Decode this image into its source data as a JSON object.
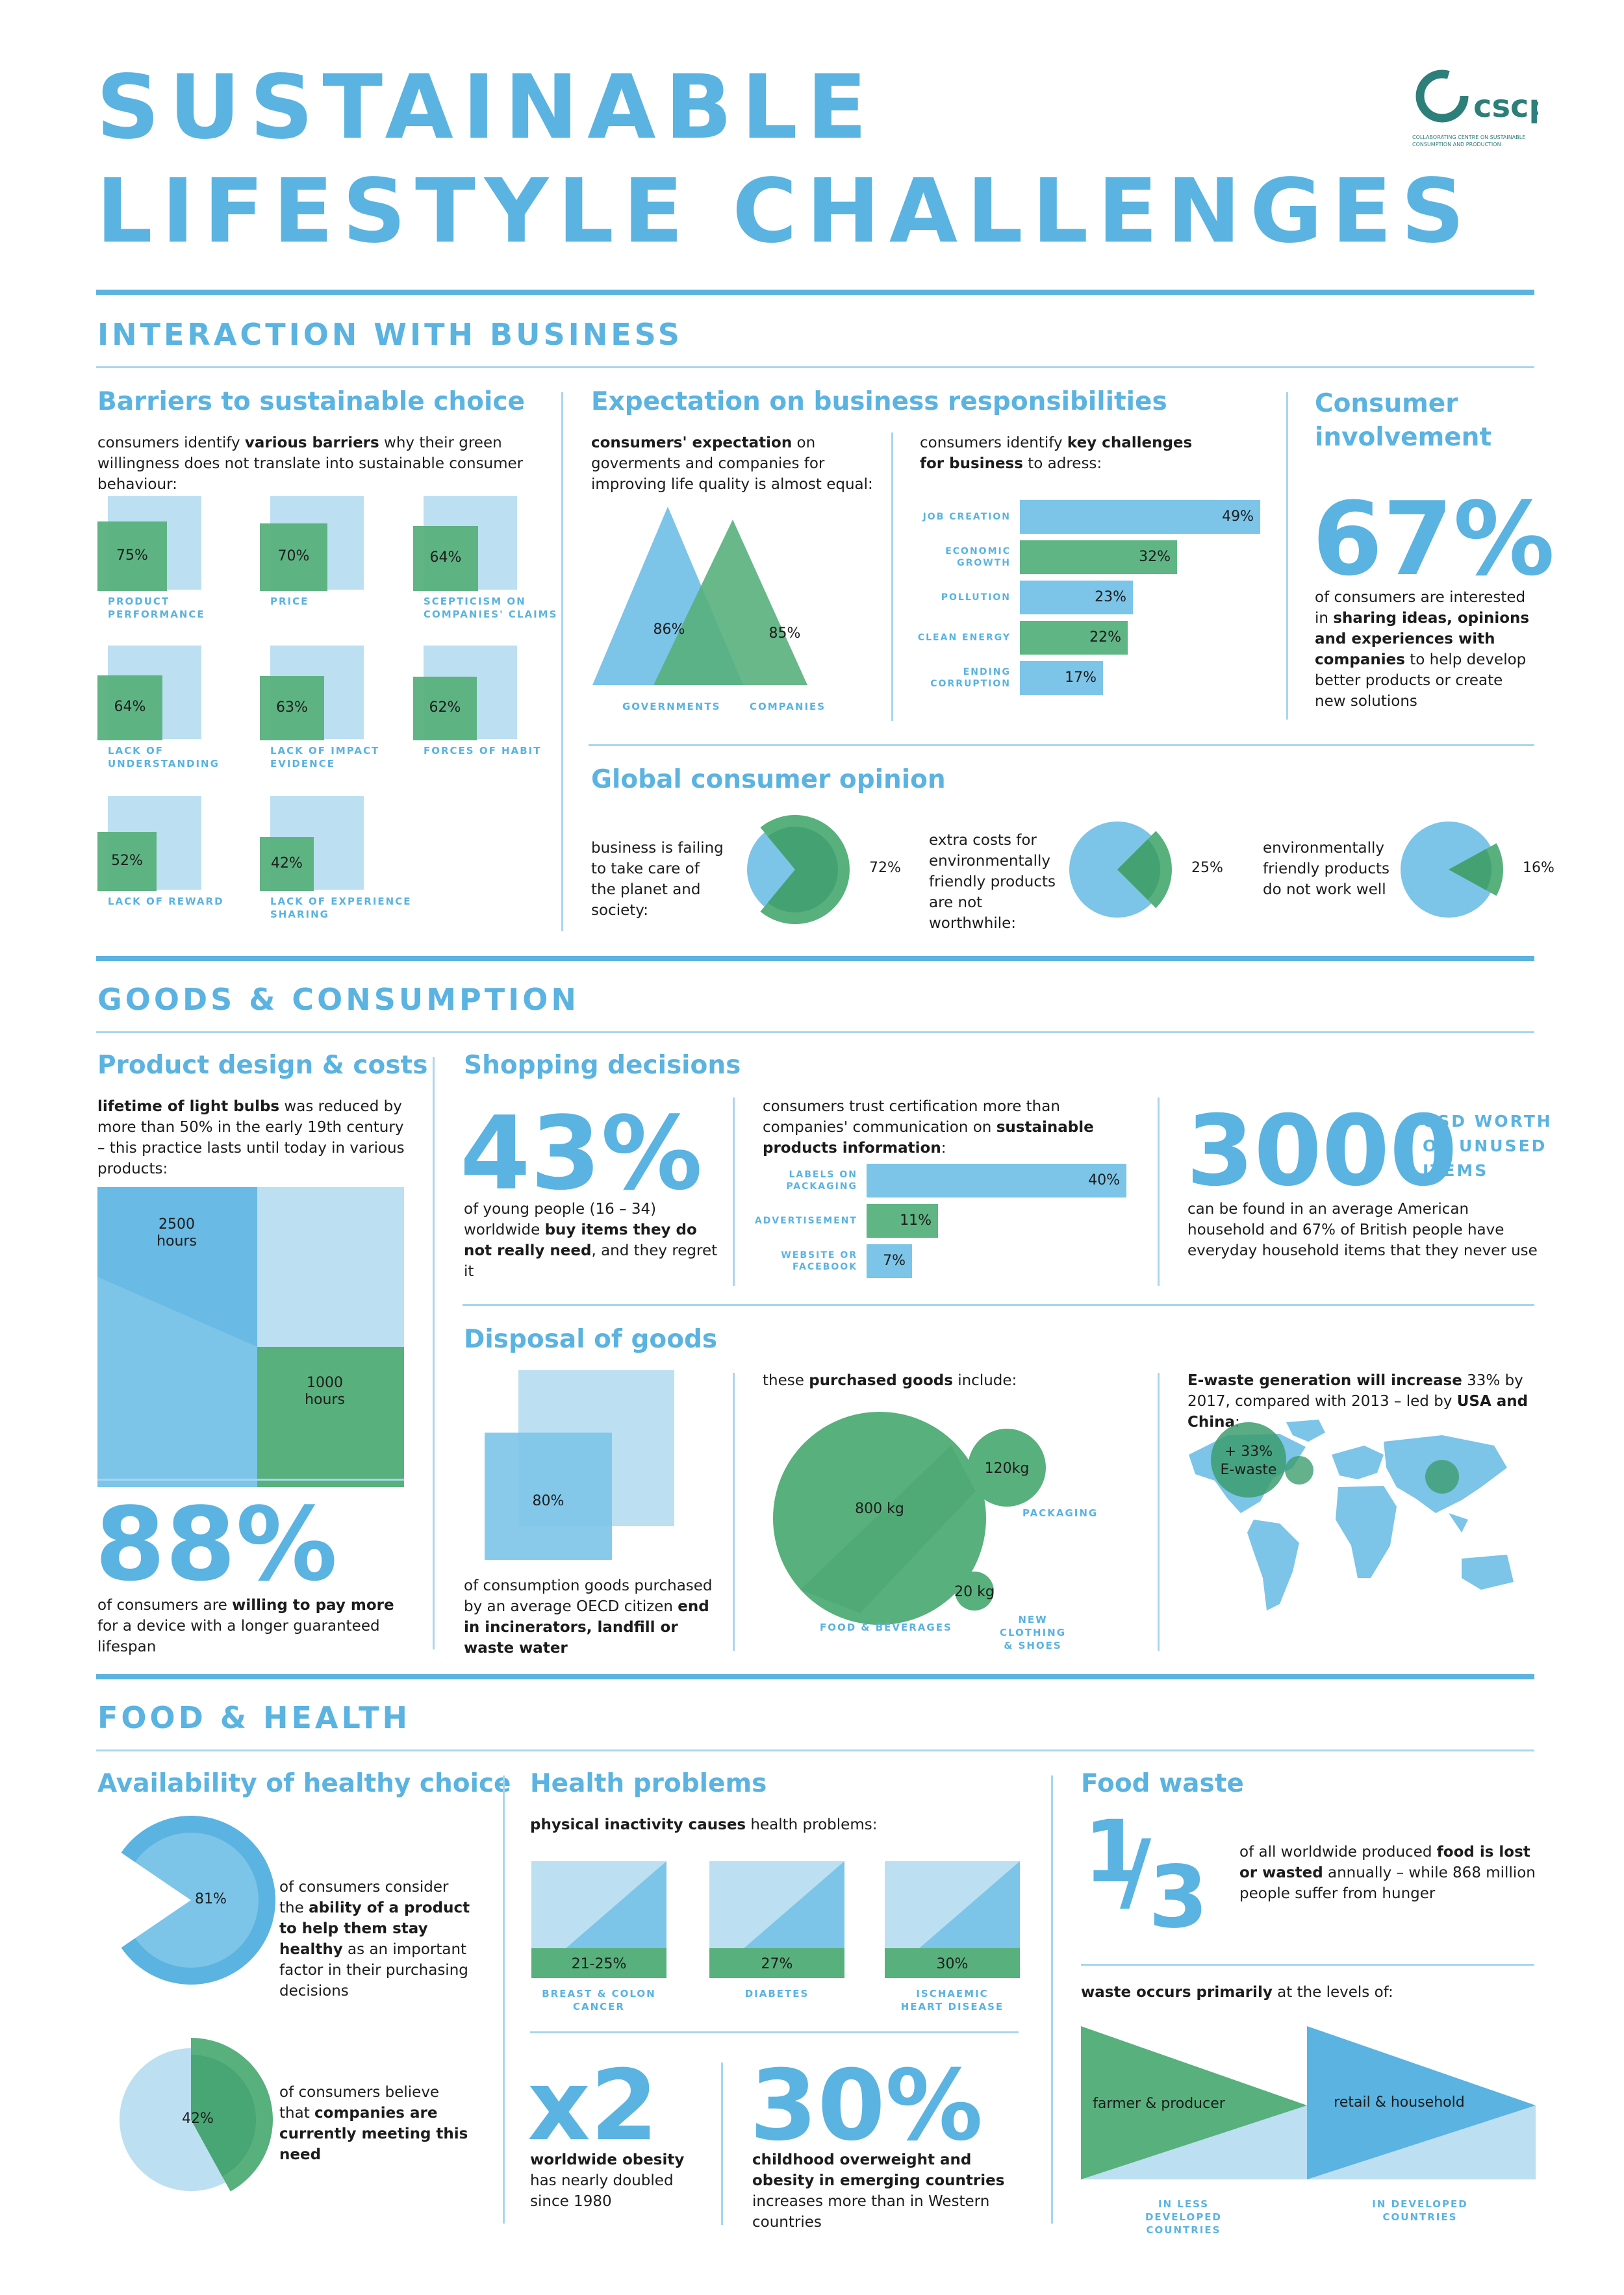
{
  "header": {
    "title_line1": "SUSTAINABLE",
    "title_line2": "LIFESTYLE CHALLENGES",
    "logo_text": "cscp",
    "logo_sub1": "COLLABORATING CENTRE ON SUSTAINABLE",
    "logo_sub2": "CONSUMPTION AND PRODUCTION"
  },
  "colors": {
    "blue": "#5ab3e0",
    "light_blue": "#bcdff2",
    "green": "#58b07c",
    "dark_green": "#3d9e6f"
  },
  "business": {
    "section_title": "INTERACTION WITH BUSINESS",
    "barriers": {
      "title": "Barriers to sustainable choice",
      "text_pre": "consumers identify ",
      "text_bold": "various barriers",
      "text_post": " why their green willingness does not translate into sustainable consumer behaviour:",
      "items": [
        {
          "value": "75%",
          "label_1": "PRODUCT",
          "label_2": "PERFORMANCE",
          "fraction": 0.75
        },
        {
          "value": "70%",
          "label_1": "PRICE",
          "label_2": "",
          "fraction": 0.7
        },
        {
          "value": "64%",
          "label_1": "SCEPTICISM ON",
          "label_2": "COMPANIES' CLAIMS",
          "fraction": 0.64
        },
        {
          "value": "64%",
          "label_1": "LACK OF",
          "label_2": "UNDERSTANDING",
          "fraction": 0.64
        },
        {
          "value": "63%",
          "label_1": "LACK OF IMPACT",
          "label_2": "EVIDENCE",
          "fraction": 0.63
        },
        {
          "value": "62%",
          "label_1": "FORCES OF HABIT",
          "label_2": "",
          "fraction": 0.62
        },
        {
          "value": "52%",
          "label_1": "LACK OF REWARD",
          "label_2": "",
          "fraction": 0.52
        },
        {
          "value": "42%",
          "label_1": "LACK OF EXPERIENCE",
          "label_2": "SHARING",
          "fraction": 0.42
        }
      ]
    },
    "expectation": {
      "title": "Expectation on business responsibilities",
      "left_bold": "consumers' expectation",
      "left_text": " on goverments and companies for improving life quality is almost equal:",
      "gov_value": "86%",
      "comp_value": "85%",
      "gov_label": "GOVERNMENTS",
      "comp_label": "COMPANIES",
      "right_pre": "consumers identify ",
      "right_bold": "key challenges for business",
      "right_post": " to adress:"
    },
    "involvement": {
      "title_1": "Consumer",
      "title_2": "involvement",
      "value": "67%",
      "text_pre": "of consumers are interested in ",
      "text_bold": "sharing ideas, opinions and experiences with companies",
      "text_post": " to help develop better products or create new solutions"
    },
    "global": {
      "title": "Global consumer opinion",
      "items": [
        {
          "text": "business is failing to take care of the planet and society:",
          "value": "72%",
          "fraction": 0.72
        },
        {
          "text": "extra costs for environmentally friendly products are not worthwhile:",
          "value": "25%",
          "fraction": 0.25
        },
        {
          "text": "environmentally friendly products do not work well",
          "value": "16%",
          "fraction": 0.16
        }
      ]
    }
  },
  "goods": {
    "section_title": "GOODS & CONSUMPTION",
    "product_design": {
      "title": "Product design & costs",
      "text_bold": "lifetime of light bulbs",
      "text_post": " was reduced by more than 50% in the early 19th century – this practice lasts until today in various products:",
      "big_label": "2500 hours",
      "small_label": "1000 hours",
      "pct": "88%",
      "pct_pre": "of consumers are ",
      "pct_bold": "willing to pay more",
      "pct_post": " for a device with a longer guaranteed lifespan"
    },
    "shopping": {
      "title": "Shopping decisions",
      "pct": "43%",
      "pct_pre": "of young people (16 – 34) worldwide ",
      "pct_bold": "buy items they do not really need",
      "pct_post": ", and they regret it",
      "trust_pre": "consumers trust certification more than companies' communication on ",
      "trust_bold": "sustainable products information",
      "trust_post": ":",
      "usd_value": "3000",
      "usd_label_1": "USD WORTH",
      "usd_label_2": "OF UNUSED",
      "usd_label_3": "ITEMS",
      "usd_text": "can be found in an average American household and 67% of British people have everyday household items that they never use"
    },
    "disposal": {
      "title": "Disposal of goods",
      "square_value": "80%",
      "text_pre": "of consumption goods purchased by an average OECD citizen ",
      "text_bold": "end in incinerators, landfill or waste water",
      "purchased_pre": "these ",
      "purchased_bold": "purchased goods",
      "purchased_post": " include:",
      "circles": [
        {
          "value": "800 kg",
          "label_1": "FOOD & BEVERAGES",
          "label_2": ""
        },
        {
          "value": "120kg",
          "label_1": "PACKAGING",
          "label_2": ""
        },
        {
          "value": "20 kg",
          "label_1": "NEW CLOTHING",
          "label_2": "& SHOES"
        }
      ],
      "ewaste_bold": "E-waste generation will increase",
      "ewaste_mid": " 33% by 2017, compared with 2013 – led by ",
      "ewaste_bold2": "USA and China",
      "ewaste_post": ":",
      "ewaste_value": "+ 33%",
      "ewaste_label": "E-waste"
    }
  },
  "food": {
    "section_title": "FOOD & HEALTH",
    "availability": {
      "title": "Availability of healthy choice",
      "items": [
        {
          "value": "81%",
          "fraction": 0.81,
          "pre": "of consumers consider the ",
          "bold": "ability of a product to help them stay healthy",
          "post": " as an important factor in their purchasing decisions"
        },
        {
          "value": "42%",
          "fraction": 0.42,
          "pre": "of consumers believe that ",
          "bold": "companies are currently meeting this need",
          "post": ""
        }
      ]
    },
    "health": {
      "title": "Health problems",
      "intro_bold": "physical inactivity causes",
      "intro_post": " health problems:",
      "items": [
        {
          "value": "21-25%",
          "label_1": "BREAST & COLON",
          "label_2": "CANCER"
        },
        {
          "value": "27%",
          "label_1": "DIABETES",
          "label_2": ""
        },
        {
          "value": "30%",
          "label_1": "ISCHAEMIC",
          "label_2": "HEART DISEASE"
        }
      ],
      "obesity_value": "x2",
      "obesity_bold": "worldwide obesity",
      "obesity_text": "has nearly doubled since 1980",
      "child_value": "30%",
      "child_bold_1": "childhood overweight and obesity",
      "child_mid": "",
      "child_bold_2": "in emerging countries",
      "child_post": " increases more than in Western countries"
    },
    "waste": {
      "title": "Food waste",
      "frac_num": "1",
      "frac_slash": "/",
      "frac_den": "3",
      "text_pre": "of all worldwide produced ",
      "text_bold": "food is lost or wasted",
      "text_post": " annually – while 868 million people suffer from hunger",
      "levels_bold": "waste occurs primarily",
      "levels_post": " at the levels of:",
      "farmer": "farmer & producer",
      "retail": "retail & household",
      "less_1": "IN LESS DEVELOPED",
      "less_2": "COUNTRIES",
      "dev_1": "IN DEVELOPED",
      "dev_2": "COUNTRIES"
    }
  },
  "chart_data": [
    {
      "type": "bar",
      "title": "",
      "categories": [
        "JOB CREATION",
        "ECONOMIC GROWTH",
        "POLLUTION",
        "CLEAN ENERGY",
        "ENDING CORRUPTION"
      ],
      "values": [
        49,
        32,
        23,
        22,
        17
      ],
      "value_labels": [
        "49%",
        "32%",
        "23%",
        "22%",
        "17%"
      ],
      "orientation": "horizontal",
      "xlim": [
        0,
        49
      ]
    },
    {
      "type": "bar",
      "title": "",
      "categories": [
        "LABELS ON PACKAGING",
        "ADVERTISEMENT",
        "WEBSITE OR FACEBOOK"
      ],
      "values": [
        40,
        11,
        7
      ],
      "value_labels": [
        "40%",
        "11%",
        "7%"
      ],
      "orientation": "horizontal",
      "xlim": [
        0,
        40
      ]
    }
  ]
}
